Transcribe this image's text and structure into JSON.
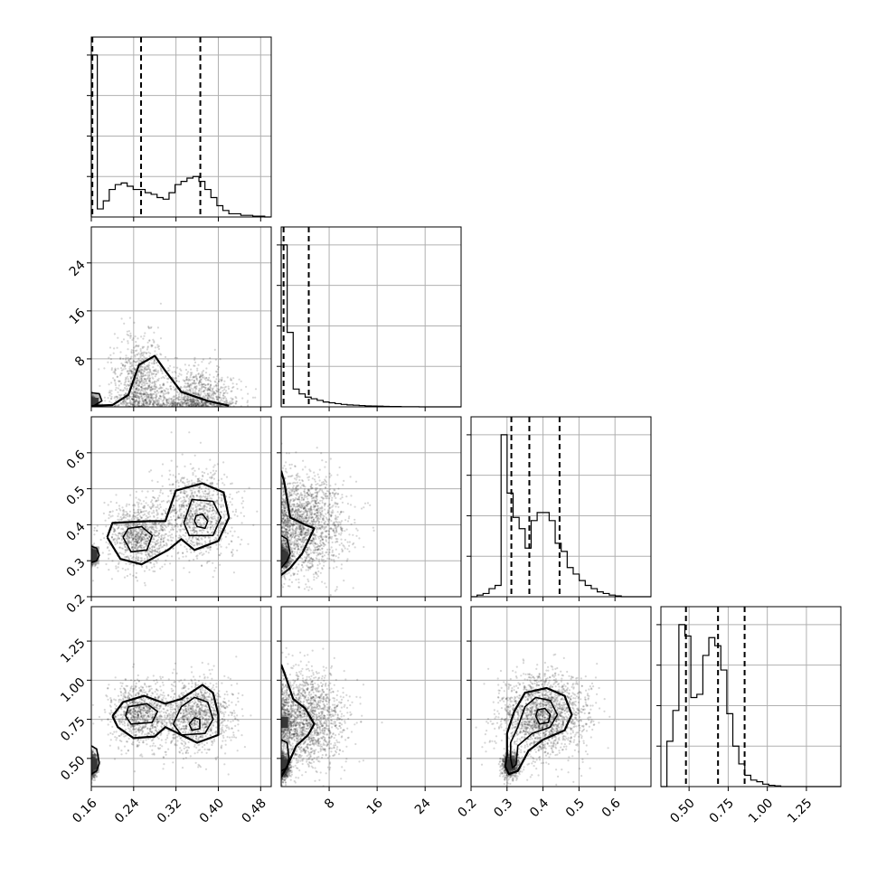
{
  "chart_data": {
    "type": "corner",
    "title": "",
    "parameters": 4,
    "axes": [
      {
        "range": [
          0.16,
          0.5
        ],
        "ticks": [
          0.16,
          0.24,
          0.32,
          0.4,
          0.48
        ],
        "tick_labels": [
          "0.16",
          "0.24",
          "0.32",
          "0.40",
          "0.48"
        ]
      },
      {
        "range": [
          0,
          30
        ],
        "ticks": [
          8,
          16,
          24
        ],
        "tick_labels": [
          "8",
          "16",
          "24"
        ]
      },
      {
        "range": [
          0.2,
          0.7
        ],
        "ticks": [
          0.2,
          0.3,
          0.4,
          0.5,
          0.6
        ],
        "tick_labels": [
          "0.2",
          "0.3",
          "0.4",
          "0.5",
          "0.6"
        ]
      },
      {
        "range": [
          0.32,
          1.47
        ],
        "ticks": [
          0.5,
          0.75,
          1.0,
          1.25
        ],
        "tick_labels": [
          "0.50",
          "0.75",
          "1.00",
          "1.25"
        ]
      }
    ],
    "histograms": [
      {
        "param": 0,
        "edges_start": 0.16,
        "bin_width": 0.0113,
        "heights": [
          1.0,
          0.05,
          0.1,
          0.17,
          0.2,
          0.21,
          0.19,
          0.17,
          0.17,
          0.15,
          0.14,
          0.12,
          0.11,
          0.15,
          0.2,
          0.22,
          0.24,
          0.25,
          0.22,
          0.17,
          0.12,
          0.07,
          0.04,
          0.02,
          0.02,
          0.01,
          0.01,
          0.005,
          0.005,
          0.0
        ],
        "quantiles": [
          0.162,
          0.254,
          0.366
        ]
      },
      {
        "param": 1,
        "edges_start": 0.0,
        "bin_width": 1.0,
        "heights": [
          1.0,
          0.46,
          0.11,
          0.08,
          0.06,
          0.05,
          0.04,
          0.03,
          0.025,
          0.02,
          0.015,
          0.012,
          0.01,
          0.008,
          0.006,
          0.005,
          0.004,
          0.003,
          0.002,
          0.002,
          0.001,
          0.001,
          0.001,
          0.0,
          0.0,
          0.0,
          0.0,
          0.0,
          0.0,
          0.0
        ],
        "quantiles": [
          0.4,
          4.6
        ]
      },
      {
        "param": 2,
        "edges_start": 0.2,
        "bin_width": 0.0167,
        "heights": [
          0.0,
          0.01,
          0.02,
          0.05,
          0.07,
          1.0,
          0.64,
          0.49,
          0.42,
          0.3,
          0.47,
          0.52,
          0.52,
          0.47,
          0.33,
          0.28,
          0.18,
          0.14,
          0.1,
          0.07,
          0.05,
          0.03,
          0.02,
          0.01,
          0.005,
          0.0,
          0.0,
          0.0,
          0.0,
          0.0
        ],
        "quantiles": [
          0.312,
          0.362,
          0.446
        ]
      },
      {
        "param": 3,
        "edges_start": 0.32,
        "bin_width": 0.0383,
        "heights": [
          0.0,
          0.28,
          0.47,
          1.0,
          0.93,
          0.55,
          0.57,
          0.81,
          0.92,
          0.87,
          0.72,
          0.45,
          0.25,
          0.14,
          0.07,
          0.04,
          0.03,
          0.015,
          0.008,
          0.004,
          0.0,
          0.0,
          0.0,
          0.0,
          0.0,
          0.0,
          0.0,
          0.0,
          0.0,
          0.0
        ],
        "quantiles": [
          0.48,
          0.685,
          0.855
        ]
      }
    ],
    "pairs": [
      {
        "x_param": 0,
        "y_param": 1,
        "clusters": [
          {
            "x": 0.162,
            "y": 0.5,
            "sx": 0.004,
            "sy": 0.6,
            "w": 0.3
          },
          {
            "x": 0.25,
            "y": 3.5,
            "sx": 0.025,
            "sy": 4.0,
            "w": 0.35
          },
          {
            "x": 0.36,
            "y": 1.5,
            "sx": 0.04,
            "sy": 2.5,
            "w": 0.35
          }
        ],
        "contours": [
          [
            [
              0.165,
              0.2
            ],
            [
              0.2,
              0.3
            ],
            [
              0.23,
              2.0
            ],
            [
              0.25,
              7.0
            ],
            [
              0.28,
              8.5
            ],
            [
              0.3,
              6.0
            ],
            [
              0.33,
              2.5
            ],
            [
              0.38,
              1.0
            ],
            [
              0.42,
              0.2
            ]
          ],
          [
            [
              0.155,
              2.4
            ],
            [
              0.175,
              2.2
            ],
            [
              0.18,
              1.0
            ],
            [
              0.165,
              0.2
            ],
            [
              0.155,
              0.2
            ]
          ]
        ],
        "dense_cells": [
          [
            0.165,
            0.6
          ]
        ]
      },
      {
        "x_param": 0,
        "y_param": 2,
        "clusters": [
          {
            "x": 0.163,
            "y": 0.315,
            "sx": 0.004,
            "sy": 0.01,
            "w": 0.25
          },
          {
            "x": 0.25,
            "y": 0.37,
            "sx": 0.03,
            "sy": 0.045,
            "w": 0.35
          },
          {
            "x": 0.36,
            "y": 0.43,
            "sx": 0.035,
            "sy": 0.06,
            "w": 0.4
          }
        ],
        "contours": [
          [
            [
              0.19,
              0.365
            ],
            [
              0.215,
              0.305
            ],
            [
              0.255,
              0.29
            ],
            [
              0.305,
              0.33
            ],
            [
              0.33,
              0.36
            ],
            [
              0.355,
              0.33
            ],
            [
              0.4,
              0.355
            ],
            [
              0.42,
              0.42
            ],
            [
              0.41,
              0.49
            ],
            [
              0.37,
              0.515
            ],
            [
              0.32,
              0.495
            ],
            [
              0.3,
              0.41
            ],
            [
              0.27,
              0.41
            ],
            [
              0.2,
              0.405
            ],
            [
              0.19,
              0.365
            ]
          ],
          [
            [
              0.22,
              0.365
            ],
            [
              0.235,
              0.325
            ],
            [
              0.265,
              0.33
            ],
            [
              0.275,
              0.37
            ],
            [
              0.255,
              0.395
            ],
            [
              0.23,
              0.39
            ],
            [
              0.22,
              0.365
            ]
          ],
          [
            [
              0.335,
              0.405
            ],
            [
              0.345,
              0.37
            ],
            [
              0.39,
              0.37
            ],
            [
              0.405,
              0.42
            ],
            [
              0.39,
              0.465
            ],
            [
              0.35,
              0.47
            ],
            [
              0.335,
              0.405
            ]
          ],
          [
            [
              0.355,
              0.41
            ],
            [
              0.36,
              0.395
            ],
            [
              0.375,
              0.39
            ],
            [
              0.38,
              0.41
            ],
            [
              0.37,
              0.43
            ],
            [
              0.358,
              0.425
            ],
            [
              0.355,
              0.41
            ]
          ],
          [
            [
              0.16,
              0.295
            ],
            [
              0.17,
              0.3
            ],
            [
              0.175,
              0.315
            ],
            [
              0.17,
              0.335
            ],
            [
              0.16,
              0.34
            ]
          ]
        ],
        "dense_cells": [
          [
            0.163,
            0.315
          ]
        ]
      },
      {
        "x_param": 1,
        "y_param": 2,
        "clusters": [
          {
            "x": 0.4,
            "y": 0.31,
            "sx": 0.5,
            "sy": 0.015,
            "w": 0.3
          },
          {
            "x": 3.5,
            "y": 0.4,
            "sx": 3.5,
            "sy": 0.07,
            "w": 0.7
          }
        ],
        "contours": [
          [
            [
              0.0,
              0.26
            ],
            [
              1.5,
              0.28
            ],
            [
              3.5,
              0.32
            ],
            [
              5.5,
              0.39
            ],
            [
              4.0,
              0.4
            ],
            [
              1.5,
              0.42
            ],
            [
              0.5,
              0.52
            ],
            [
              0.0,
              0.55
            ]
          ],
          [
            [
              0.0,
              0.28
            ],
            [
              1.0,
              0.3
            ],
            [
              1.5,
              0.32
            ],
            [
              1.0,
              0.36
            ],
            [
              0.0,
              0.37
            ]
          ]
        ],
        "dense_cells": [
          [
            0.4,
            0.31
          ]
        ]
      },
      {
        "x_param": 0,
        "y_param": 3,
        "clusters": [
          {
            "x": 0.163,
            "y": 0.46,
            "sx": 0.004,
            "sy": 0.04,
            "w": 0.25
          },
          {
            "x": 0.25,
            "y": 0.78,
            "sx": 0.03,
            "sy": 0.1,
            "w": 0.35
          },
          {
            "x": 0.36,
            "y": 0.78,
            "sx": 0.035,
            "sy": 0.12,
            "w": 0.4
          }
        ],
        "contours": [
          [
            [
              0.2,
              0.77
            ],
            [
              0.21,
              0.7
            ],
            [
              0.24,
              0.63
            ],
            [
              0.28,
              0.64
            ],
            [
              0.3,
              0.7
            ],
            [
              0.33,
              0.65
            ],
            [
              0.36,
              0.6
            ],
            [
              0.4,
              0.65
            ],
            [
              0.4,
              0.78
            ],
            [
              0.39,
              0.92
            ],
            [
              0.37,
              0.97
            ],
            [
              0.33,
              0.88
            ],
            [
              0.3,
              0.85
            ],
            [
              0.26,
              0.9
            ],
            [
              0.22,
              0.86
            ],
            [
              0.2,
              0.77
            ]
          ],
          [
            [
              0.225,
              0.77
            ],
            [
              0.235,
              0.72
            ],
            [
              0.275,
              0.73
            ],
            [
              0.285,
              0.8
            ],
            [
              0.265,
              0.85
            ],
            [
              0.23,
              0.83
            ],
            [
              0.225,
              0.77
            ]
          ],
          [
            [
              0.315,
              0.72
            ],
            [
              0.33,
              0.65
            ],
            [
              0.375,
              0.66
            ],
            [
              0.39,
              0.75
            ],
            [
              0.38,
              0.86
            ],
            [
              0.355,
              0.89
            ],
            [
              0.33,
              0.83
            ],
            [
              0.315,
              0.72
            ]
          ],
          [
            [
              0.345,
              0.72
            ],
            [
              0.35,
              0.68
            ],
            [
              0.365,
              0.69
            ],
            [
              0.365,
              0.75
            ],
            [
              0.355,
              0.76
            ],
            [
              0.345,
              0.72
            ]
          ],
          [
            [
              0.16,
              0.4
            ],
            [
              0.17,
              0.42
            ],
            [
              0.175,
              0.47
            ],
            [
              0.17,
              0.56
            ],
            [
              0.16,
              0.58
            ]
          ]
        ],
        "dense_cells": [
          [
            0.163,
            0.465
          ]
        ]
      },
      {
        "x_param": 1,
        "y_param": 3,
        "clusters": [
          {
            "x": 0.4,
            "y": 0.45,
            "sx": 0.5,
            "sy": 0.04,
            "w": 0.3
          },
          {
            "x": 3.5,
            "y": 0.75,
            "sx": 3.5,
            "sy": 0.15,
            "w": 0.7
          }
        ],
        "contours": [
          [
            [
              0.0,
              0.38
            ],
            [
              1.0,
              0.45
            ],
            [
              2.5,
              0.58
            ],
            [
              4.5,
              0.65
            ],
            [
              5.5,
              0.72
            ],
            [
              4.0,
              0.82
            ],
            [
              2.0,
              0.88
            ],
            [
              0.5,
              1.05
            ],
            [
              0.0,
              1.1
            ]
          ],
          [
            [
              0.0,
              0.42
            ],
            [
              1.0,
              0.44
            ],
            [
              1.3,
              0.5
            ],
            [
              1.0,
              0.6
            ],
            [
              0.0,
              0.62
            ]
          ]
        ],
        "dense_cells": [
          [
            0.4,
            0.46
          ],
          [
            0.4,
            0.73
          ]
        ]
      },
      {
        "x_param": 2,
        "y_param": 3,
        "clusters": [
          {
            "x": 0.31,
            "y": 0.46,
            "sx": 0.012,
            "sy": 0.04,
            "w": 0.3
          },
          {
            "x": 0.4,
            "y": 0.78,
            "sx": 0.06,
            "sy": 0.13,
            "w": 0.7
          }
        ],
        "contours": [
          [
            [
              0.295,
              0.45
            ],
            [
              0.305,
              0.4
            ],
            [
              0.33,
              0.42
            ],
            [
              0.36,
              0.55
            ],
            [
              0.4,
              0.62
            ],
            [
              0.46,
              0.68
            ],
            [
              0.48,
              0.78
            ],
            [
              0.46,
              0.9
            ],
            [
              0.41,
              0.95
            ],
            [
              0.35,
              0.92
            ],
            [
              0.32,
              0.8
            ],
            [
              0.3,
              0.66
            ],
            [
              0.3,
              0.52
            ],
            [
              0.295,
              0.45
            ]
          ],
          [
            [
              0.31,
              0.5
            ],
            [
              0.315,
              0.44
            ],
            [
              0.325,
              0.46
            ],
            [
              0.33,
              0.58
            ],
            [
              0.37,
              0.66
            ],
            [
              0.42,
              0.7
            ],
            [
              0.44,
              0.78
            ],
            [
              0.42,
              0.87
            ],
            [
              0.38,
              0.89
            ],
            [
              0.35,
              0.83
            ],
            [
              0.33,
              0.7
            ],
            [
              0.31,
              0.6
            ],
            [
              0.31,
              0.5
            ]
          ],
          [
            [
              0.38,
              0.77
            ],
            [
              0.39,
              0.72
            ],
            [
              0.415,
              0.73
            ],
            [
              0.42,
              0.78
            ],
            [
              0.405,
              0.82
            ],
            [
              0.385,
              0.81
            ],
            [
              0.38,
              0.77
            ]
          ]
        ],
        "dense_cells": [
          [
            0.31,
            0.46
          ]
        ]
      }
    ],
    "points_per_panel": 2600,
    "xlabel": "",
    "ylabel": ""
  }
}
